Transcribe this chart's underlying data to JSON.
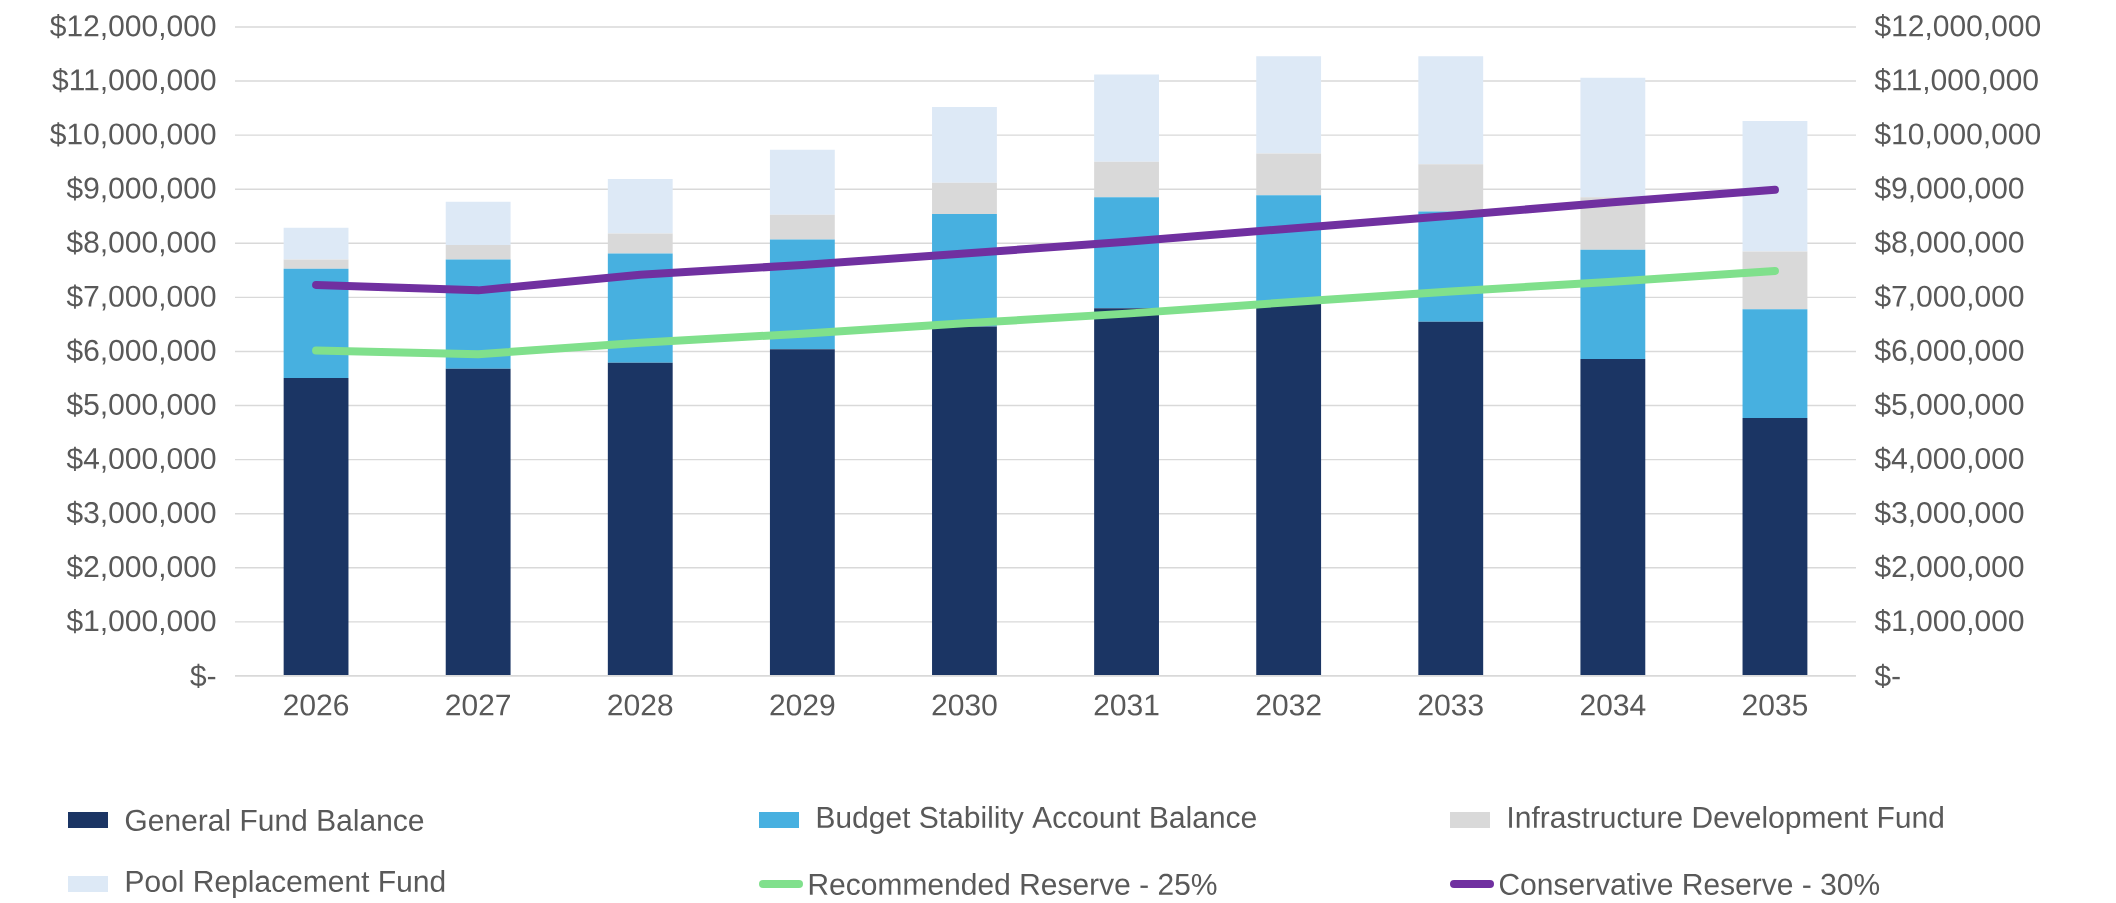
{
  "chart_data": {
    "type": "bar",
    "stacked": true,
    "grid": "y",
    "legend": "bottom",
    "categories": [
      "2026",
      "2027",
      "2028",
      "2029",
      "2030",
      "2031",
      "2032",
      "2033",
      "2034",
      "2035"
    ],
    "ylim": [
      0,
      12000000
    ],
    "yticks": [
      {
        "value": 0,
        "label": "$-"
      },
      {
        "value": 1000000,
        "label": "$1,000,000"
      },
      {
        "value": 2000000,
        "label": "$2,000,000"
      },
      {
        "value": 3000000,
        "label": "$3,000,000"
      },
      {
        "value": 4000000,
        "label": "$4,000,000"
      },
      {
        "value": 5000000,
        "label": "$5,000,000"
      },
      {
        "value": 6000000,
        "label": "$6,000,000"
      },
      {
        "value": 7000000,
        "label": "$7,000,000"
      },
      {
        "value": 8000000,
        "label": "$8,000,000"
      },
      {
        "value": 9000000,
        "label": "$9,000,000"
      },
      {
        "value": 10000000,
        "label": "$10,000,000"
      },
      {
        "value": 11000000,
        "label": "$11,000,000"
      },
      {
        "value": 12000000,
        "label": "$12,000,000"
      }
    ],
    "y2lim": [
      0,
      12000000
    ],
    "y2ticks": [
      {
        "value": 0,
        "label": "$-"
      },
      {
        "value": 1000000,
        "label": "$1,000,000"
      },
      {
        "value": 2000000,
        "label": "$2,000,000"
      },
      {
        "value": 3000000,
        "label": "$3,000,000"
      },
      {
        "value": 4000000,
        "label": "$4,000,000"
      },
      {
        "value": 5000000,
        "label": "$5,000,000"
      },
      {
        "value": 6000000,
        "label": "$6,000,000"
      },
      {
        "value": 7000000,
        "label": "$7,000,000"
      },
      {
        "value": 8000000,
        "label": "$8,000,000"
      },
      {
        "value": 9000000,
        "label": "$9,000,000"
      },
      {
        "value": 10000000,
        "label": "$10,000,000"
      },
      {
        "value": 11000000,
        "label": "$11,000,000"
      },
      {
        "value": 12000000,
        "label": "$12,000,000"
      }
    ],
    "series": [
      {
        "name": "General Fund Balance",
        "color": "#1b3564",
        "values": [
          5510000,
          5680000,
          5790000,
          6040000,
          6460000,
          6800000,
          6890000,
          6550000,
          5860000,
          4770000
        ]
      },
      {
        "name": "Budget Stability Account Balance",
        "color": "#47b0e0",
        "values": [
          2020000,
          2020000,
          2020000,
          2030000,
          2080000,
          2050000,
          2000000,
          2040000,
          2020000,
          2010000
        ]
      },
      {
        "name": "Infrastructure Development Fund",
        "color": "#d9d9d9",
        "values": [
          170000,
          270000,
          370000,
          460000,
          580000,
          660000,
          770000,
          870000,
          970000,
          1070000
        ]
      },
      {
        "name": "Pool Replacement Fund",
        "color": "#dde9f6",
        "values": [
          590000,
          800000,
          1010000,
          1200000,
          1400000,
          1610000,
          1800000,
          2000000,
          2210000,
          2410000
        ]
      },
      {
        "name": "Recommended Reserve - 25%",
        "color": "#80e08c",
        "type": "line",
        "axis": "y2",
        "values": [
          6020000,
          5950000,
          6160000,
          6330000,
          6520000,
          6700000,
          6910000,
          7110000,
          7290000,
          7490000
        ]
      },
      {
        "name": "Conservative Reserve - 30%",
        "color": "#7030a0",
        "type": "line",
        "axis": "y2",
        "values": [
          7230000,
          7130000,
          7420000,
          7600000,
          7810000,
          8030000,
          8270000,
          8510000,
          8760000,
          8990000
        ]
      }
    ]
  }
}
